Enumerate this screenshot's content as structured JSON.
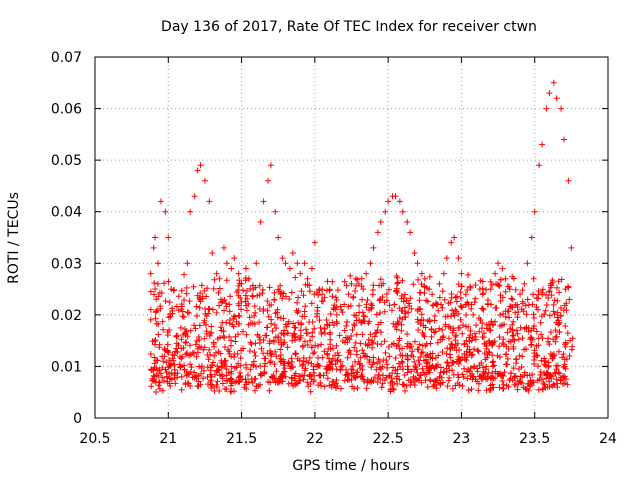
{
  "chart_data": {
    "type": "scatter",
    "title": "Day 136 of 2017, Rate Of TEC Index for receiver ctwn",
    "xlabel": "GPS time / hours",
    "ylabel": "ROTI / TECUs",
    "xlim": [
      20.5,
      24
    ],
    "ylim": [
      0,
      0.07
    ],
    "xticks": [
      "20.5",
      "21",
      "21.5",
      "22",
      "22.5",
      "23",
      "23.5",
      "24"
    ],
    "yticks": [
      "0",
      "0.01",
      "0.02",
      "0.03",
      "0.04",
      "0.05",
      "0.06",
      "0.07"
    ],
    "grid": true,
    "legend": "none",
    "marker": "+",
    "color": "#ff0000",
    "x_range_of_data": [
      20.88,
      23.76
    ],
    "series": [
      {
        "x": [
          20.88,
          20.9,
          20.91,
          20.93,
          20.95,
          20.98,
          21.0,
          21.02,
          21.13,
          21.15,
          21.18,
          21.2,
          21.22,
          21.25,
          21.28,
          21.3,
          21.33,
          21.35,
          21.38,
          21.4,
          21.43,
          21.45,
          21.48,
          21.5,
          21.53,
          21.55,
          21.58,
          21.6,
          21.63,
          21.65,
          21.68,
          21.7,
          21.73,
          21.75,
          21.78,
          21.8,
          21.83,
          21.85,
          21.88,
          21.9,
          21.93,
          21.95,
          21.98,
          22.0,
          22.03,
          22.05,
          22.08,
          22.1,
          22.13,
          22.15,
          22.18,
          22.2,
          22.23,
          22.25,
          22.28,
          22.3,
          22.33,
          22.35,
          22.38,
          22.4,
          22.43,
          22.45,
          22.48,
          22.5,
          22.53,
          22.55,
          22.58,
          22.6,
          22.63,
          22.65,
          22.68,
          22.7,
          22.73,
          22.75,
          22.78,
          22.8,
          22.83,
          22.85,
          22.88,
          22.9,
          22.93,
          22.95,
          22.98,
          23.0,
          23.03,
          23.05,
          23.08,
          23.1,
          23.13,
          23.15,
          23.18,
          23.2,
          23.23,
          23.25,
          23.28,
          23.3,
          23.33,
          23.35,
          23.38,
          23.4,
          23.43,
          23.45,
          23.48,
          23.5,
          23.53,
          23.55,
          23.58,
          23.6,
          23.63,
          23.65,
          23.68,
          23.7,
          23.73,
          23.75
        ],
        "y": [
          0.028,
          0.033,
          0.035,
          0.03,
          0.042,
          0.04,
          0.035,
          0.025,
          0.03,
          0.04,
          0.043,
          0.048,
          0.049,
          0.046,
          0.042,
          0.032,
          0.028,
          0.027,
          0.033,
          0.03,
          0.029,
          0.031,
          0.028,
          0.026,
          0.029,
          0.027,
          0.025,
          0.03,
          0.038,
          0.042,
          0.046,
          0.049,
          0.04,
          0.035,
          0.031,
          0.03,
          0.029,
          0.032,
          0.03,
          0.028,
          0.03,
          0.027,
          0.029,
          0.034,
          0.025,
          0.024,
          0.019,
          0.018,
          0.018,
          0.02,
          0.021,
          0.022,
          0.024,
          0.026,
          0.027,
          0.026,
          0.025,
          0.028,
          0.03,
          0.033,
          0.036,
          0.038,
          0.04,
          0.042,
          0.043,
          0.043,
          0.042,
          0.04,
          0.038,
          0.036,
          0.032,
          0.03,
          0.028,
          0.027,
          0.025,
          0.024,
          0.022,
          0.026,
          0.028,
          0.031,
          0.034,
          0.035,
          0.031,
          0.028,
          0.024,
          0.022,
          0.02,
          0.018,
          0.019,
          0.021,
          0.022,
          0.025,
          0.028,
          0.03,
          0.029,
          0.027,
          0.025,
          0.023,
          0.022,
          0.024,
          0.026,
          0.03,
          0.035,
          0.04,
          0.049,
          0.053,
          0.06,
          0.063,
          0.065,
          0.062,
          0.06,
          0.054,
          0.046,
          0.033
        ]
      }
    ]
  }
}
